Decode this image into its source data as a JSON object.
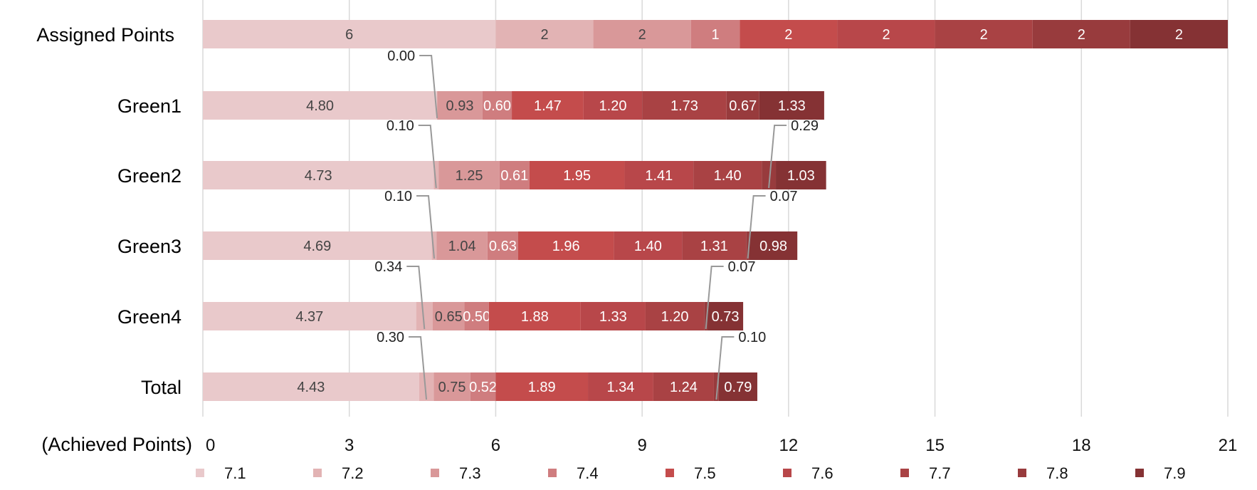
{
  "chart_data": {
    "type": "bar",
    "orientation": "horizontal",
    "stacked": true,
    "xlabel": "(Achieved Points)",
    "xlim": [
      0,
      21
    ],
    "xticks": [
      "0",
      "3",
      "6",
      "9",
      "12",
      "15",
      "18",
      "21"
    ],
    "grid": true,
    "legend_position": "bottom",
    "categories": [
      "Assigned Points",
      "Green1",
      "Green2",
      "Green3",
      "Green4",
      "Total"
    ],
    "series": [
      {
        "name": "7.1",
        "color": "#e9c9cb",
        "values": [
          6,
          4.8,
          4.73,
          4.69,
          4.37,
          4.43
        ],
        "labels": [
          "6",
          "4.80",
          "4.73",
          "4.69",
          "4.37",
          "4.43"
        ]
      },
      {
        "name": "7.2",
        "color": "#e2b3b4",
        "values": [
          2,
          0.0,
          0.1,
          0.1,
          0.34,
          0.3
        ],
        "labels": [
          "2",
          "0.00",
          "0.10",
          "0.10",
          "0.34",
          "0.30"
        ]
      },
      {
        "name": "7.3",
        "color": "#d99899",
        "values": [
          2,
          0.93,
          1.25,
          1.04,
          0.65,
          0.75
        ],
        "labels": [
          "2",
          "0.93",
          "1.25",
          "1.04",
          "0.65",
          "0.75"
        ]
      },
      {
        "name": "7.4",
        "color": "#cf7d7f",
        "values": [
          1,
          0.6,
          0.61,
          0.63,
          0.5,
          0.52
        ],
        "labels": [
          "1",
          "0.60",
          "0.61",
          "0.63",
          "0.50",
          "0.52"
        ]
      },
      {
        "name": "7.5",
        "color": "#c44c4c",
        "values": [
          2,
          1.47,
          1.95,
          1.96,
          1.88,
          1.89
        ],
        "labels": [
          "2",
          "1.47",
          "1.95",
          "1.96",
          "1.88",
          "1.89"
        ]
      },
      {
        "name": "7.6",
        "color": "#b8474a",
        "values": [
          2,
          1.2,
          1.41,
          1.4,
          1.33,
          1.34
        ],
        "labels": [
          "2",
          "1.20",
          "1.41",
          "1.40",
          "1.33",
          "1.34"
        ]
      },
      {
        "name": "7.7",
        "color": "#a94244",
        "values": [
          2,
          1.73,
          1.4,
          1.31,
          1.2,
          1.24
        ],
        "labels": [
          "2",
          "1.73",
          "1.40",
          "1.31",
          "1.20",
          "1.24"
        ]
      },
      {
        "name": "7.8",
        "color": "#983b3d",
        "values": [
          2,
          0.67,
          0.29,
          0.07,
          0.07,
          0.1
        ],
        "labels": [
          "2",
          "0.67",
          "0.29",
          "0.07",
          "0.07",
          "0.10"
        ]
      },
      {
        "name": "7.9",
        "color": "#853234",
        "values": [
          2,
          1.33,
          1.03,
          0.98,
          0.73,
          0.79
        ],
        "labels": [
          "2",
          "1.33",
          "1.03",
          "0.98",
          "0.73",
          "0.79"
        ]
      }
    ]
  }
}
